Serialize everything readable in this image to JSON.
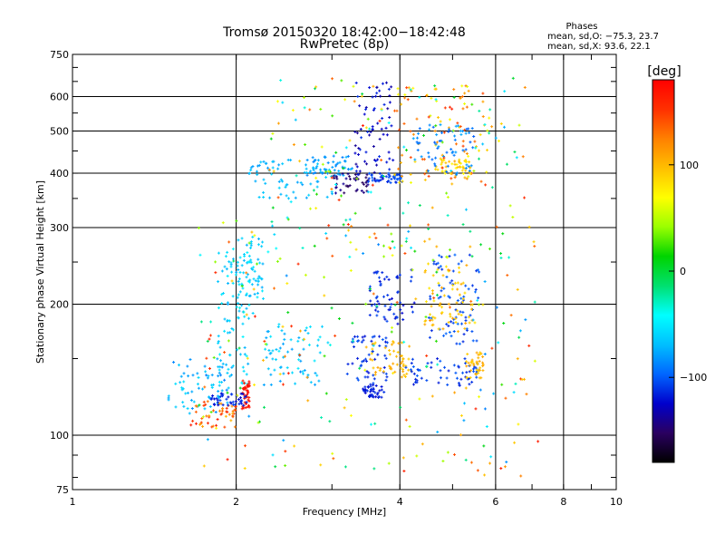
{
  "chart_data": {
    "type": "scatter",
    "title": "Tromsø 20150320 18:42:00−18:42:48",
    "subtitle": "RwPretec (8p)",
    "xlabel": "Frequency [MHz]",
    "ylabel": "Stationary phase Virtual Height [km]",
    "x_scale": "log",
    "y_scale": "log",
    "xlim": [
      1,
      10
    ],
    "ylim": [
      75,
      750
    ],
    "x_ticks": [
      "1",
      "2",
      "4",
      "6",
      "8",
      "10"
    ],
    "y_ticks": [
      "75",
      "100",
      "200",
      "300",
      "400",
      "500",
      "600",
      "750"
    ],
    "grid": true,
    "stats": {
      "heading": "Phases",
      "line1": "mean, sd,O: −75.3, 23.7",
      "line2": "mean, sd,X:  93.6, 22.1"
    },
    "colorbar": {
      "label": "[deg]",
      "min": -180,
      "max": 180,
      "ticks": [
        "100",
        "0",
        "−100"
      ],
      "tick_values": [
        100,
        0,
        -100
      ],
      "colors": [
        "#000000",
        "#2a0060",
        "#0000cc",
        "#0066ff",
        "#00bfff",
        "#00ffff",
        "#00e070",
        "#00d400",
        "#9aff00",
        "#ffff00",
        "#ffbf00",
        "#ff8000",
        "#ff3000",
        "#ff0000"
      ]
    },
    "clusters": [
      {
        "x": [
          1.5,
          1.95
        ],
        "y": [
          112,
          150
        ],
        "phase": [
          -90,
          -55
        ]
      },
      {
        "x": [
          1.65,
          2.0
        ],
        "y": [
          104,
          120
        ],
        "phase": [
          100,
          165
        ]
      },
      {
        "x": [
          1.85,
          2.12
        ],
        "y": [
          130,
          270
        ],
        "phase": [
          -75,
          -45
        ]
      },
      {
        "x": [
          2.05,
          2.12
        ],
        "y": [
          115,
          135
        ],
        "phase": [
          160,
          175
        ]
      },
      {
        "x": [
          2.25,
          2.9
        ],
        "y": [
          130,
          180
        ],
        "phase": [
          -80,
          -50
        ]
      },
      {
        "x": [
          2.0,
          2.25
        ],
        "y": [
          190,
          290
        ],
        "phase": [
          -75,
          -50
        ]
      },
      {
        "x": [
          1.8,
          2.1
        ],
        "y": [
          117,
          125
        ],
        "phase": [
          -125,
          -105
        ]
      },
      {
        "x": [
          2.1,
          3.0
        ],
        "y": [
          350,
          430
        ],
        "phase": [
          -80,
          -60
        ]
      },
      {
        "x": [
          2.7,
          3.3
        ],
        "y": [
          395,
          440
        ],
        "phase": [
          -90,
          -70
        ]
      },
      {
        "x": [
          3.0,
          3.5
        ],
        "y": [
          360,
          400
        ],
        "phase": [
          -155,
          -135
        ]
      },
      {
        "x": [
          3.3,
          3.9
        ],
        "y": [
          380,
          650
        ],
        "phase": [
          -140,
          -110
        ]
      },
      {
        "x": [
          3.5,
          4.1
        ],
        "y": [
          380,
          400
        ],
        "phase": [
          -115,
          -95
        ]
      },
      {
        "x": [
          3.9,
          5.8
        ],
        "y": [
          380,
          640
        ],
        "phase": [
          60,
          150
        ]
      },
      {
        "x": [
          4.6,
          5.4
        ],
        "y": [
          395,
          430
        ],
        "phase": [
          70,
          100
        ]
      },
      {
        "x": [
          4.2,
          5.5
        ],
        "y": [
          395,
          520
        ],
        "phase": [
          -100,
          -75
        ]
      },
      {
        "x": [
          3.2,
          3.8
        ],
        "y": [
          130,
          170
        ],
        "phase": [
          -120,
          -100
        ]
      },
      {
        "x": [
          3.4,
          3.75
        ],
        "y": [
          122,
          130
        ],
        "phase": [
          -125,
          -110
        ]
      },
      {
        "x": [
          3.55,
          4.2
        ],
        "y": [
          135,
          165
        ],
        "phase": [
          90,
          110
        ]
      },
      {
        "x": [
          3.5,
          4.3
        ],
        "y": [
          180,
          240
        ],
        "phase": [
          -125,
          -105
        ]
      },
      {
        "x": [
          4.1,
          5.6
        ],
        "y": [
          130,
          150
        ],
        "phase": [
          -120,
          -100
        ]
      },
      {
        "x": [
          4.5,
          5.6
        ],
        "y": [
          160,
          260
        ],
        "phase": [
          -115,
          -95
        ]
      },
      {
        "x": [
          4.4,
          5.5
        ],
        "y": [
          175,
          250
        ],
        "phase": [
          80,
          110
        ]
      },
      {
        "x": [
          5.3,
          5.7
        ],
        "y": [
          135,
          155
        ],
        "phase": [
          85,
          110
        ]
      },
      {
        "x": [
          2.3,
          6.8
        ],
        "y": [
          250,
          670
        ],
        "phase": [
          -75,
          165
        ]
      },
      {
        "x": [
          1.7,
          7.2
        ],
        "y": [
          80,
          320
        ],
        "phase": [
          -90,
          165
        ]
      }
    ]
  }
}
